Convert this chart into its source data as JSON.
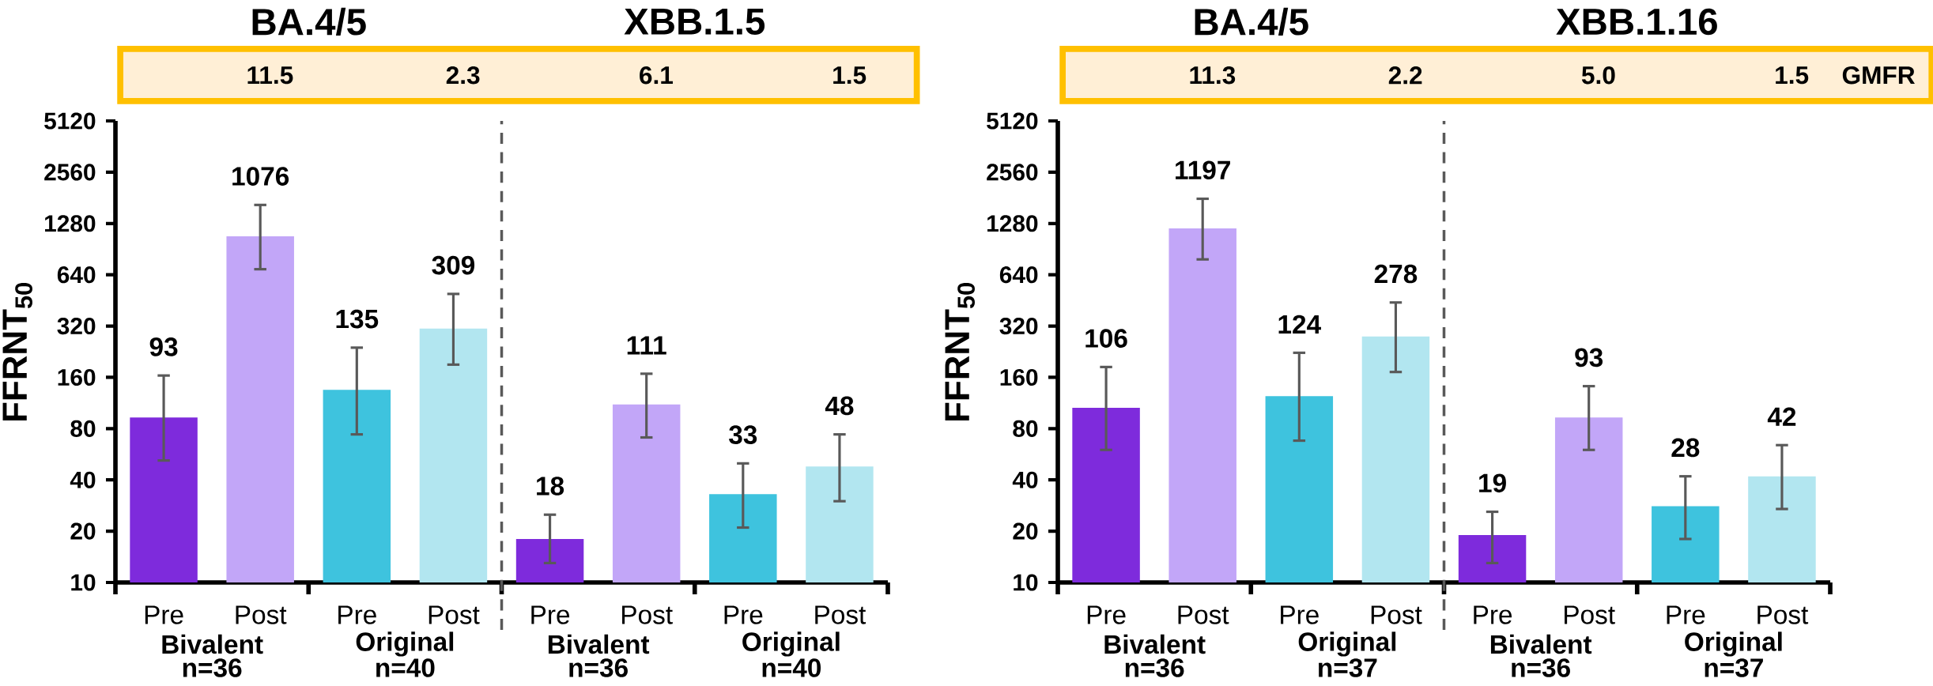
{
  "chart_data": [
    {
      "type": "bar",
      "ylabel": "FFRNT$_{50}$",
      "log": "y",
      "ylim": [
        10,
        5120
      ],
      "yticks": [
        10,
        20,
        40,
        80,
        160,
        320,
        640,
        1280,
        2560,
        5120
      ],
      "categories": [
        "Pre",
        "Post",
        "Pre",
        "Post",
        "Pre",
        "Post",
        "Pre",
        "Post"
      ],
      "values": [
        93,
        1076,
        135,
        309,
        18,
        111,
        33,
        48
      ],
      "colors": [
        "#7e2bdc",
        "#c2a6f8",
        "#3ec3de",
        "#b2e6f0",
        "#7e2bdc",
        "#c2a6f8",
        "#3ec3de",
        "#b2e6f0"
      ],
      "errors": [
        [
          52,
          164
        ],
        [
          690,
          1645
        ],
        [
          74,
          239
        ],
        [
          190,
          494
        ],
        [
          13,
          25
        ],
        [
          71,
          168
        ],
        [
          21,
          50
        ],
        [
          30,
          74
        ]
      ],
      "data_labels": true,
      "annotations": [
        "BA.4/5",
        "XBB.1.5",
        "11.5",
        "2.3",
        "6.1",
        "1.5",
        "Bivalent",
        "n=36",
        "Original",
        "n=40",
        "Bivalent",
        "n=36",
        "Original",
        "n=40"
      ]
    },
    {
      "type": "bar",
      "ylabel": "FFRNT$_{50}$",
      "log": "y",
      "ylim": [
        10,
        5120
      ],
      "yticks": [
        10,
        20,
        40,
        80,
        160,
        320,
        640,
        1280,
        2560,
        5120
      ],
      "categories": [
        "Pre",
        "Post",
        "Pre",
        "Post",
        "Pre",
        "Post",
        "Pre",
        "Post"
      ],
      "values": [
        106,
        1197,
        124,
        278,
        19,
        93,
        28,
        42
      ],
      "colors": [
        "#7e2bdc",
        "#c2a6f8",
        "#3ec3de",
        "#b2e6f0",
        "#7e2bdc",
        "#c2a6f8",
        "#3ec3de",
        "#b2e6f0"
      ],
      "errors": [
        [
          60,
          184
        ],
        [
          788,
          1788
        ],
        [
          68,
          223
        ],
        [
          172,
          440
        ],
        [
          13,
          26
        ],
        [
          60,
          142
        ],
        [
          18,
          42
        ],
        [
          27,
          64
        ]
      ],
      "data_labels": true,
      "annotations": [
        "BA.4/5",
        "XBB.1.16",
        "11.3",
        "2.2",
        "5.0",
        "1.5",
        "Bivalent",
        "n=36",
        "Original",
        "n=37",
        "Bivalent",
        "n=36",
        "Original",
        "n=37",
        "GMFR"
      ]
    }
  ]
}
